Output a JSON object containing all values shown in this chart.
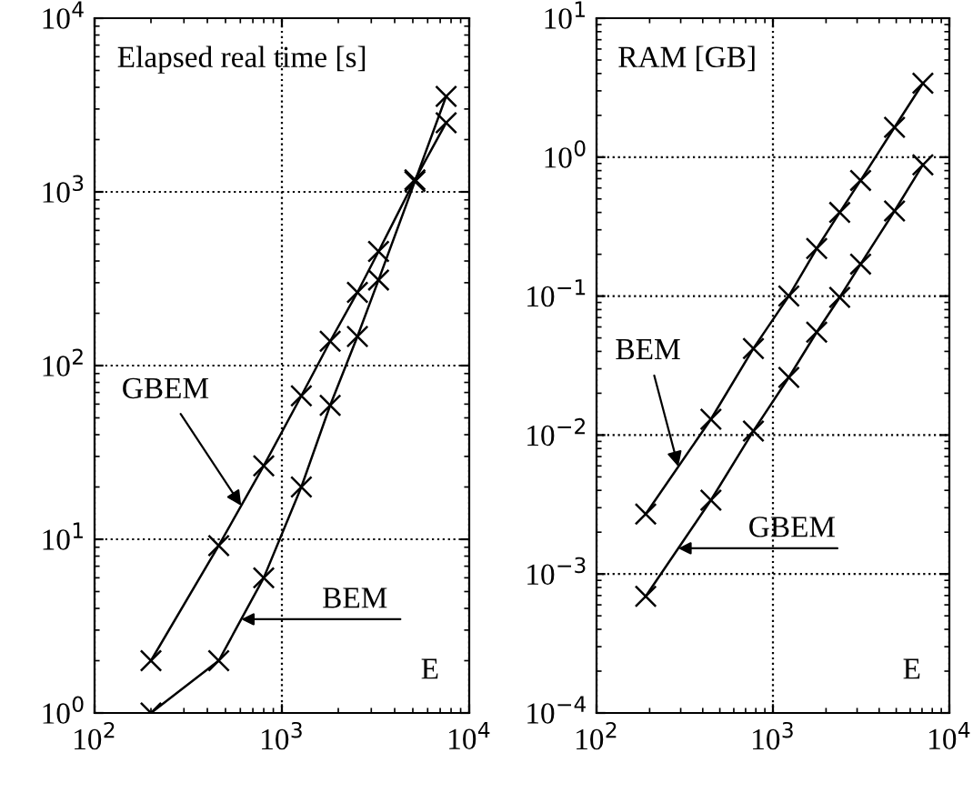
{
  "chart_data": [
    {
      "type": "line",
      "title": "Elapsed real time [s]",
      "xlabel": "E",
      "log": "xy",
      "grid": true,
      "marker": "cross",
      "line_style": "solid",
      "legend": false,
      "xlim": [
        100,
        10000
      ],
      "xticks": [
        {
          "value": 100,
          "label": "10$^{2}$"
        },
        {
          "value": 1000,
          "label": "10$^{3}$"
        },
        {
          "value": 10000,
          "label": "10$^{4}$"
        }
      ],
      "ylim": [
        1,
        10000
      ],
      "yticks": [
        {
          "value": 1,
          "label": "10$^{0}$"
        },
        {
          "value": 10,
          "label": "10$^{1}$"
        },
        {
          "value": 100,
          "label": "10$^{2}$"
        },
        {
          "value": 1000,
          "label": "10$^{3}$"
        },
        {
          "value": 10000,
          "label": "10$^{4}$"
        }
      ],
      "x": [
        200,
        460,
        800,
        1270,
        1810,
        2530,
        3280,
        5130,
        7530
      ],
      "series": [
        {
          "name": "GBEM",
          "color": "#000000",
          "values": [
            2.0,
            9.2,
            26.5,
            67,
            138,
            264,
            454,
            1175,
            2500
          ]
        },
        {
          "name": "BEM",
          "color": "#000000",
          "values": [
            1.0,
            2.0,
            6.0,
            20,
            59,
            147,
            311,
            1150,
            3550
          ]
        }
      ]
    },
    {
      "type": "line",
      "title": "RAM [GB]",
      "xlabel": "E",
      "log": "xy",
      "grid": true,
      "marker": "cross",
      "line_style": "solid",
      "legend": false,
      "xlim": [
        100,
        10000
      ],
      "xticks": [
        {
          "value": 100,
          "label": "10$^{2}$"
        },
        {
          "value": 1000,
          "label": "10$^{3}$"
        },
        {
          "value": 10000,
          "label": "10$^{4}$"
        }
      ],
      "ylim": [
        0.0001,
        10
      ],
      "yticks": [
        {
          "value": 0.0001,
          "label": "10$^{−4}$"
        },
        {
          "value": 0.001,
          "label": "10$^{−3}$"
        },
        {
          "value": 0.01,
          "label": "10$^{−2}$"
        },
        {
          "value": 0.1,
          "label": "10$^{−1}$"
        },
        {
          "value": 1,
          "label": "10$^{0}$"
        },
        {
          "value": 10,
          "label": "10$^{1}$"
        }
      ],
      "x": [
        190,
        445,
        775,
        1230,
        1770,
        2390,
        3140,
        4890,
        7080
      ],
      "series": [
        {
          "name": "BEM",
          "color": "#000000",
          "values": [
            0.0027,
            0.013,
            0.042,
            0.1,
            0.22,
            0.4,
            0.68,
            1.64,
            3.4
          ]
        },
        {
          "name": "GBEM",
          "color": "#000000",
          "values": [
            0.00069,
            0.0034,
            0.0107,
            0.026,
            0.055,
            0.098,
            0.17,
            0.41,
            0.88
          ]
        }
      ]
    }
  ]
}
